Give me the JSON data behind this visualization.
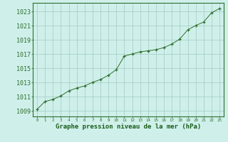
{
  "x": [
    0,
    1,
    2,
    3,
    4,
    5,
    6,
    7,
    8,
    9,
    10,
    11,
    12,
    13,
    14,
    15,
    16,
    17,
    18,
    19,
    20,
    21,
    22,
    23
  ],
  "y": [
    1009.2,
    1010.3,
    1010.6,
    1011.1,
    1011.8,
    1012.2,
    1012.5,
    1013.0,
    1013.4,
    1014.0,
    1014.8,
    1016.7,
    1017.0,
    1017.3,
    1017.45,
    1017.6,
    1017.9,
    1018.4,
    1019.1,
    1020.4,
    1021.0,
    1021.5,
    1022.8,
    1023.4
  ],
  "line_color": "#2d6e2d",
  "marker_color": "#2d6e2d",
  "bg_color": "#cff0ea",
  "grid_color": "#a8cfc9",
  "xlabel": "Graphe pression niveau de la mer (hPa)",
  "xlabel_color": "#1a5c1a",
  "ytick_labels": [
    "1009",
    "1011",
    "1013",
    "1015",
    "1017",
    "1019",
    "1021",
    "1023"
  ],
  "ytick_values": [
    1009,
    1011,
    1013,
    1015,
    1017,
    1019,
    1021,
    1023
  ],
  "ylim": [
    1008.2,
    1024.2
  ],
  "xlim": [
    -0.5,
    23.5
  ],
  "xtick_values": [
    0,
    1,
    2,
    3,
    4,
    5,
    6,
    7,
    8,
    9,
    10,
    11,
    12,
    13,
    14,
    15,
    16,
    17,
    18,
    19,
    20,
    21,
    22,
    23
  ],
  "axis_color": "#2d6e2d",
  "tick_color": "#2d6e2d",
  "ytick_fontsize": 6.0,
  "xtick_fontsize": 4.2,
  "xlabel_fontsize": 6.5
}
